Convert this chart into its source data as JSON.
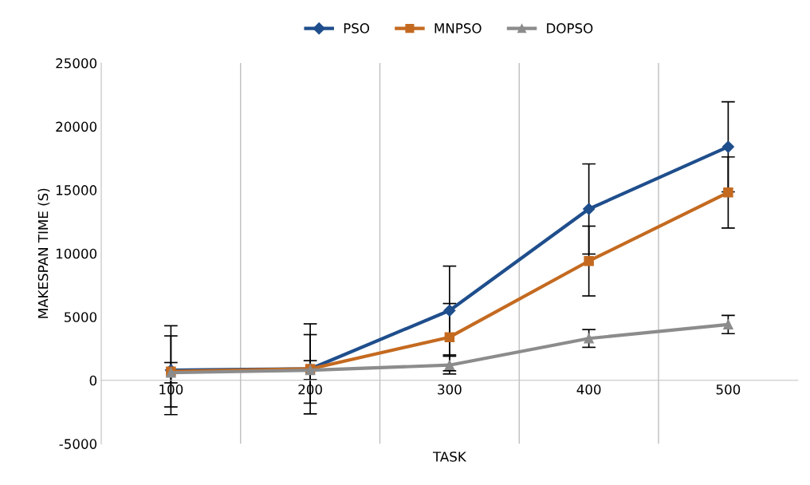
{
  "chart_data": {
    "type": "line",
    "xlabel": "TASK",
    "ylabel": "MAKESPAN TIME (S)",
    "categories": [
      "100",
      "200",
      "300",
      "400",
      "500"
    ],
    "series": [
      {
        "name": "PSO",
        "color": "#1f4e8c",
        "marker": "diamond",
        "values": [
          800,
          900,
          5500,
          13500,
          18400
        ],
        "errors": [
          3500,
          3550,
          3500,
          3550,
          3550
        ]
      },
      {
        "name": "MNPSO",
        "color": "#c46a20",
        "marker": "square",
        "values": [
          700,
          900,
          3400,
          9400,
          14800
        ],
        "errors": [
          2800,
          2700,
          2650,
          2750,
          2800
        ]
      },
      {
        "name": "DOPSO",
        "color": "#8c8c8c",
        "marker": "triangle",
        "values": [
          600,
          800,
          1200,
          3300,
          4400
        ],
        "errors": [
          800,
          750,
          700,
          700,
          720
        ]
      }
    ],
    "ylim": [
      -5000,
      25000
    ],
    "yticks": [
      -5000,
      0,
      5000,
      10000,
      15000,
      20000,
      25000
    ],
    "grid": "x",
    "legend": "top",
    "line_style": "solid"
  }
}
